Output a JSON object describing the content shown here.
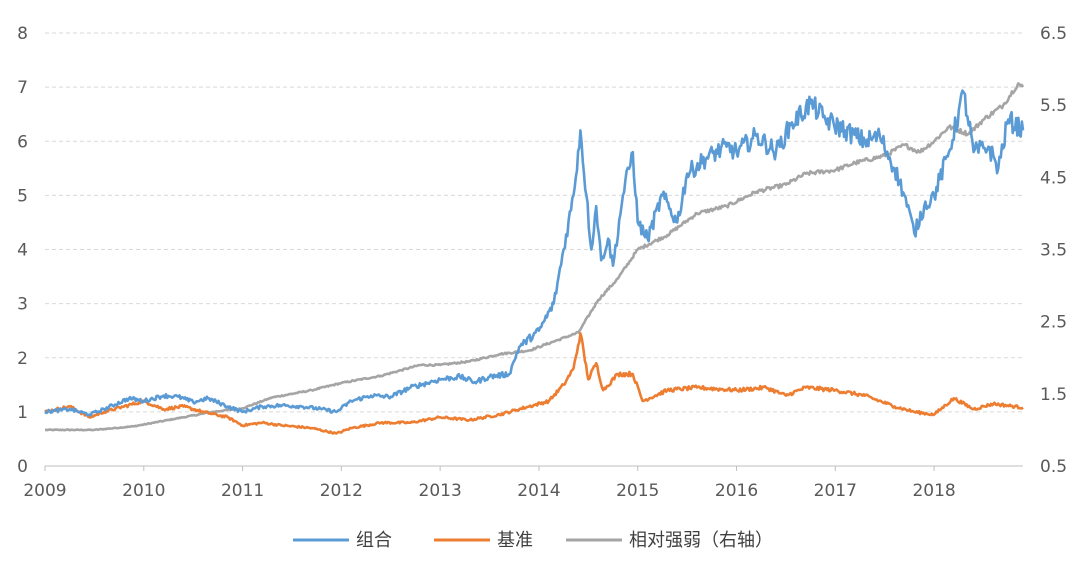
{
  "chart_data": {
    "type": "line",
    "title": "",
    "xlabel": "",
    "ylabel": "",
    "x_ticks": [
      "2009",
      "2010",
      "2011",
      "2012",
      "2013",
      "2014",
      "2015",
      "2016",
      "2017",
      "2018"
    ],
    "x_range": [
      2009.0,
      2018.9
    ],
    "y_left": {
      "range": [
        0,
        8
      ],
      "ticks": [
        "0",
        "1",
        "2",
        "3",
        "4",
        "5",
        "6",
        "7",
        "8"
      ]
    },
    "y_right": {
      "range": [
        0.5,
        6.5
      ],
      "ticks": [
        "0.5",
        "1.5",
        "2.5",
        "3.5",
        "4.5",
        "5.5",
        "6.5"
      ]
    },
    "grid": "horizontal-dashed",
    "legend_position": "bottom-center",
    "series": [
      {
        "name": "组合",
        "color": "#5B9BD5",
        "axis": "left",
        "points": [
          [
            2009.0,
            1.0
          ],
          [
            2009.25,
            1.05
          ],
          [
            2009.45,
            0.95
          ],
          [
            2009.6,
            1.05
          ],
          [
            2009.85,
            1.25
          ],
          [
            2010.0,
            1.2
          ],
          [
            2010.2,
            1.3
          ],
          [
            2010.35,
            1.28
          ],
          [
            2010.5,
            1.18
          ],
          [
            2010.65,
            1.25
          ],
          [
            2010.85,
            1.1
          ],
          [
            2011.0,
            1.0
          ],
          [
            2011.2,
            1.1
          ],
          [
            2011.4,
            1.12
          ],
          [
            2011.6,
            1.1
          ],
          [
            2011.8,
            1.05
          ],
          [
            2011.95,
            1.0
          ],
          [
            2012.1,
            1.2
          ],
          [
            2012.3,
            1.3
          ],
          [
            2012.5,
            1.28
          ],
          [
            2012.7,
            1.45
          ],
          [
            2012.9,
            1.55
          ],
          [
            2013.0,
            1.6
          ],
          [
            2013.2,
            1.65
          ],
          [
            2013.35,
            1.55
          ],
          [
            2013.5,
            1.65
          ],
          [
            2013.7,
            1.7
          ],
          [
            2013.8,
            2.2
          ],
          [
            2014.0,
            2.5
          ],
          [
            2014.15,
            3.0
          ],
          [
            2014.25,
            4.0
          ],
          [
            2014.35,
            5.0
          ],
          [
            2014.42,
            6.2
          ],
          [
            2014.48,
            5.0
          ],
          [
            2014.53,
            4.0
          ],
          [
            2014.58,
            4.8
          ],
          [
            2014.63,
            3.8
          ],
          [
            2014.7,
            4.2
          ],
          [
            2014.75,
            3.7
          ],
          [
            2014.85,
            5.0
          ],
          [
            2014.95,
            5.8
          ],
          [
            2015.0,
            4.5
          ],
          [
            2015.1,
            4.2
          ],
          [
            2015.25,
            5.0
          ],
          [
            2015.4,
            4.5
          ],
          [
            2015.5,
            5.4
          ],
          [
            2015.7,
            5.7
          ],
          [
            2015.9,
            5.9
          ],
          [
            2016.0,
            5.8
          ],
          [
            2016.2,
            6.1
          ],
          [
            2016.4,
            5.8
          ],
          [
            2016.55,
            6.3
          ],
          [
            2016.75,
            6.7
          ],
          [
            2016.9,
            6.4
          ],
          [
            2017.1,
            6.2
          ],
          [
            2017.3,
            6.0
          ],
          [
            2017.45,
            6.1
          ],
          [
            2017.6,
            5.5
          ],
          [
            2017.7,
            5.0
          ],
          [
            2017.8,
            4.3
          ],
          [
            2017.9,
            4.8
          ],
          [
            2018.0,
            5.0
          ],
          [
            2018.15,
            5.8
          ],
          [
            2018.3,
            6.9
          ],
          [
            2018.4,
            5.8
          ],
          [
            2018.55,
            5.9
          ],
          [
            2018.65,
            5.5
          ],
          [
            2018.75,
            6.4
          ],
          [
            2018.9,
            6.2
          ]
        ]
      },
      {
        "name": "基准",
        "color": "#ED7D31",
        "axis": "left",
        "points": [
          [
            2009.0,
            1.0
          ],
          [
            2009.25,
            1.1
          ],
          [
            2009.45,
            0.9
          ],
          [
            2009.6,
            1.0
          ],
          [
            2009.8,
            1.1
          ],
          [
            2010.0,
            1.2
          ],
          [
            2010.2,
            1.05
          ],
          [
            2010.4,
            1.1
          ],
          [
            2010.6,
            1.0
          ],
          [
            2010.85,
            0.9
          ],
          [
            2011.0,
            0.75
          ],
          [
            2011.2,
            0.8
          ],
          [
            2011.4,
            0.75
          ],
          [
            2011.7,
            0.7
          ],
          [
            2011.95,
            0.6
          ],
          [
            2012.1,
            0.7
          ],
          [
            2012.4,
            0.8
          ],
          [
            2012.7,
            0.8
          ],
          [
            2013.0,
            0.9
          ],
          [
            2013.3,
            0.85
          ],
          [
            2013.6,
            0.95
          ],
          [
            2013.9,
            1.1
          ],
          [
            2014.1,
            1.2
          ],
          [
            2014.25,
            1.5
          ],
          [
            2014.35,
            1.8
          ],
          [
            2014.42,
            2.45
          ],
          [
            2014.5,
            1.6
          ],
          [
            2014.58,
            1.9
          ],
          [
            2014.65,
            1.4
          ],
          [
            2014.8,
            1.7
          ],
          [
            2014.95,
            1.7
          ],
          [
            2015.05,
            1.2
          ],
          [
            2015.3,
            1.4
          ],
          [
            2015.6,
            1.45
          ],
          [
            2016.0,
            1.4
          ],
          [
            2016.3,
            1.45
          ],
          [
            2016.5,
            1.3
          ],
          [
            2016.7,
            1.45
          ],
          [
            2017.0,
            1.4
          ],
          [
            2017.3,
            1.3
          ],
          [
            2017.6,
            1.1
          ],
          [
            2017.8,
            1.0
          ],
          [
            2018.0,
            0.95
          ],
          [
            2018.2,
            1.25
          ],
          [
            2018.4,
            1.05
          ],
          [
            2018.6,
            1.15
          ],
          [
            2018.9,
            1.08
          ]
        ]
      },
      {
        "name": "相对强弱（右轴）",
        "color": "#A5A5A5",
        "axis": "right",
        "points": [
          [
            2009.0,
            1.0
          ],
          [
            2009.5,
            1.0
          ],
          [
            2009.9,
            1.05
          ],
          [
            2010.3,
            1.15
          ],
          [
            2010.7,
            1.25
          ],
          [
            2011.0,
            1.3
          ],
          [
            2011.3,
            1.45
          ],
          [
            2011.7,
            1.55
          ],
          [
            2012.0,
            1.65
          ],
          [
            2012.4,
            1.75
          ],
          [
            2012.8,
            1.9
          ],
          [
            2013.0,
            1.9
          ],
          [
            2013.3,
            1.95
          ],
          [
            2013.6,
            2.05
          ],
          [
            2013.9,
            2.1
          ],
          [
            2014.2,
            2.25
          ],
          [
            2014.4,
            2.35
          ],
          [
            2014.6,
            2.8
          ],
          [
            2014.8,
            3.1
          ],
          [
            2015.0,
            3.5
          ],
          [
            2015.3,
            3.7
          ],
          [
            2015.6,
            4.0
          ],
          [
            2015.9,
            4.1
          ],
          [
            2016.2,
            4.3
          ],
          [
            2016.5,
            4.4
          ],
          [
            2016.7,
            4.55
          ],
          [
            2017.0,
            4.6
          ],
          [
            2017.2,
            4.7
          ],
          [
            2017.5,
            4.8
          ],
          [
            2017.7,
            4.95
          ],
          [
            2017.85,
            4.85
          ],
          [
            2018.0,
            5.0
          ],
          [
            2018.15,
            5.2
          ],
          [
            2018.35,
            5.1
          ],
          [
            2018.5,
            5.3
          ],
          [
            2018.7,
            5.5
          ],
          [
            2018.85,
            5.8
          ],
          [
            2018.9,
            5.75
          ]
        ]
      }
    ]
  }
}
